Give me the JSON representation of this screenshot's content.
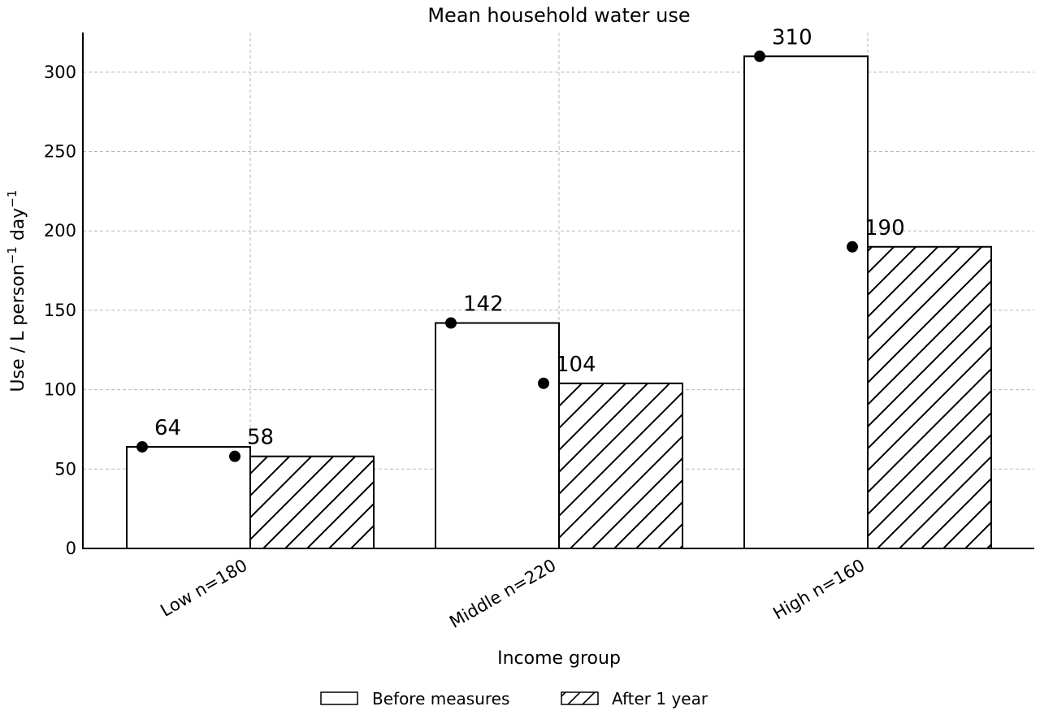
{
  "chart_data": {
    "type": "bar",
    "title": "Mean household water use",
    "xlabel": "Income group",
    "ylabel": "Use / L person",
    "ylabel_unit_suffix": " day",
    "ylabel_exponent": "−1",
    "categories": [
      "Low n=180",
      "Middle n=220",
      "High n=160"
    ],
    "series": [
      {
        "name": "Before measures",
        "values": [
          64,
          142,
          310
        ],
        "hatch": "none"
      },
      {
        "name": "After 1 year",
        "values": [
          58,
          104,
          190
        ],
        "hatch": "diagonal"
      }
    ],
    "data_labels": [
      [
        "64",
        "142",
        "310"
      ],
      [
        "58",
        "104",
        "190"
      ]
    ],
    "ylim": [
      0,
      325
    ],
    "yticks": [
      0,
      50,
      100,
      150,
      200,
      250,
      300
    ],
    "grid": true,
    "legend_position": "bottom-center",
    "markers": "dot at each bar top-left",
    "colors": {
      "bar_fill": "#ffffff",
      "stroke": "#000000",
      "grid": "#b8b8b8"
    }
  }
}
